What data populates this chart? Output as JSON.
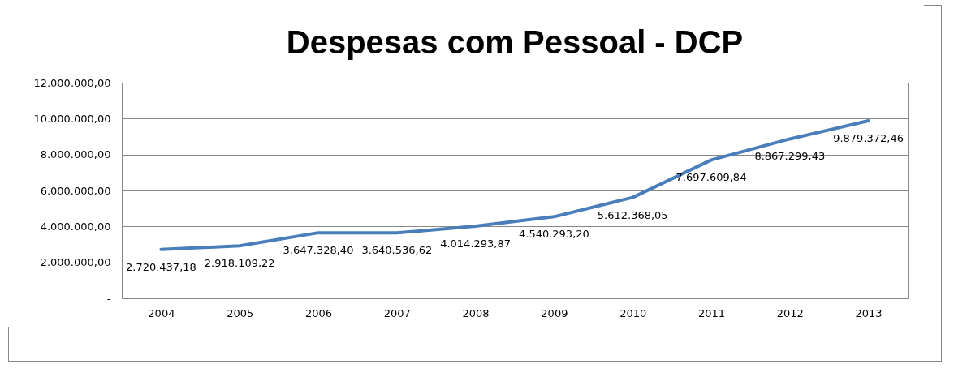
{
  "chart_data": {
    "type": "line",
    "title": "Despesas com Pessoal - DCP",
    "categories": [
      "2004",
      "2005",
      "2006",
      "2007",
      "2008",
      "2009",
      "2010",
      "2011",
      "2012",
      "2013"
    ],
    "series": [
      {
        "color": "#4a7ebb",
        "values": [
          2720437.18,
          2918109.22,
          3647328.4,
          3640536.62,
          4014293.87,
          4540293.2,
          5612368.05,
          7697609.84,
          8867299.43,
          9879372.46
        ],
        "value_labels": [
          "2.720.437,18",
          "2.918.109,22",
          "3.647.328,40",
          "3.640.536,62",
          "4.014.293,87",
          "4.540.293,20",
          "5.612.368,05",
          "7.697.609,84",
          "8.867.299,43",
          "9.879.372,46"
        ]
      }
    ],
    "ylim": [
      0,
      12000000
    ],
    "yticks": [
      {
        "value": 0,
        "label": "-"
      },
      {
        "value": 2000000,
        "label": "2.000.000,00"
      },
      {
        "value": 4000000,
        "label": "4.000.000,00"
      },
      {
        "value": 6000000,
        "label": "6.000.000,00"
      },
      {
        "value": 8000000,
        "label": "8.000.000,00"
      },
      {
        "value": 10000000,
        "label": "10.000.000,00"
      },
      {
        "value": 12000000,
        "label": "12.000.000,00"
      }
    ],
    "grid": "y",
    "marker": "none",
    "line_style": "solid"
  }
}
